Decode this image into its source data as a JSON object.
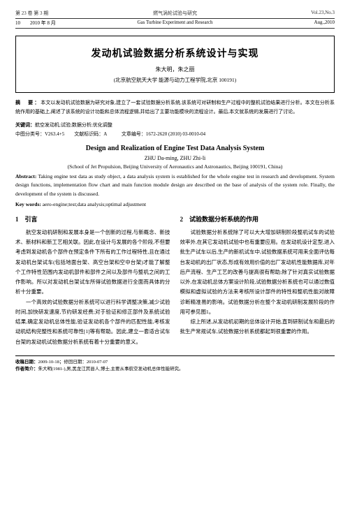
{
  "header": {
    "vol_cn": "第 23 卷 第 3 期",
    "journal_cn": "燃气涡轮试验与研究",
    "vol_en": "Vol.23,No.3",
    "date_cn": "2010 年 8 月",
    "journal_en": "Gas Turbine Experiment and Research",
    "date_en": "Aug.,2010",
    "page": "10"
  },
  "title_cn": "发动机试验数据分析系统设计与实现",
  "authors_cn": "朱大明，朱之丽",
  "affil_cn": "(北京航空航天大学 能源与动力工程学院,北京 100191)",
  "abstract_cn_label": "摘　要：",
  "abstract_cn": "本文以发动机试验数据为研究对象,建立了一套试验数据分析系统,该系统可对研制和生产过程中的整机试验结果进行分析。本文在分析系统作用的基础上,阐述了该系统的设计功能和总体流程逻辑,并给出了主要功能模块的流程设计。最后,本文就系统的发展进行了讨论。",
  "keywords_cn_label": "关键词：",
  "keywords_cn": "航空发动机;试验;数据分析;优化调整",
  "cls_label": "中图分类号：",
  "cls": "V263.4+5　　文献标识码：A　　　文章编号：1672-2620 (2010) 03-0010-04",
  "title_en": "Design and Realization of Engine Test Data Analysis System",
  "authors_en": "ZHU Da-ming, ZHU Zhi-li",
  "affil_en": "(School of Jet Propulsion, Beijing University of Aeronautics and Astronautics, Beijing 100191, China)",
  "abstract_en_label": "Abstract:",
  "abstract_en": " Taking engine test data as study object, a data analysis system is established for the whole engine test in research and development. System design functions, implementation flow chart and main function module design are described on the base of analysis of the system role. Finally, the development of the system is discussed.",
  "keywords_en_label": "Key words:",
  "keywords_en": " aero-engine;test;data analysis;optimal adjustment",
  "sec1_h": "1　引言",
  "sec1_p1": "航空发动机研制和发展本身是一个创新的过程,与新概念、新技术、新材料和新工艺相关联。因此,在设计与发展的各个阶段,不但要考虑到发动机各个部件在预定条件下所有的工作过程特性,且在通过发动机台架试车(包括地面台架、高空台架和空中台架)才能了解整个工作特性范围内发动机部件和部件之间以及部件与整机之间的工作影响。所以对发动机台架试车所得试验数据进行全面而具体的分析十分重要。",
  "sec1_p2": "一个高效的试验数据分析系统可以进行科学调整决策,减少试验时间,加快研发速度,节约研发经费;对于验证和修正部件及系统试验结果,确定发动机总体性能,验证发动机各个部件的匹配性能,考核发动机结构完整性和系统可靠性[1]等有帮助。因此,建立一套适合试车台架的发动机试验数据分析系统有着十分重要的意义。",
  "sec2_h": "2　试验数据分析系统的作用",
  "sec2_p1": "试验数据分析系统除了可以大大增加研制阶段整机试车的试验效率外,在其它发动机试验中也有重要应用。在发动机设计定型,进入批生产试车以后,生产的新机试车中,试验数据系统可用来全面评估每台发动机的出厂状态,形成有效用价值的出厂发动机性能数据库,对年后产流程、生产工艺的改善与提高很有帮助;除了针对真实试验数据以外,在发动机总体方案设计阶段,试验数据分析系统也可以通过数值模拟和虚拟试验的方法来考核所设计部件的特性和整机性能对故障诊断精准易的影响。试验数据分析在整个发动机研制发展阶段的作用可参见图1。",
  "sec2_p2": "综上所述,从发动机初期的总体设计开始,直到研制试车和最后的批生产常规试车,试验数据分析系统都起到很重要的作用。",
  "footer": {
    "recv_label": "收稿日期：",
    "recv": "2009-10-18；修回日期：2010-07-07",
    "auth_label": "作者简介：",
    "auth": "朱大明(1981-),男,黑龙江宾县人,博士,主要从事航空发动机总体性能研究。"
  }
}
